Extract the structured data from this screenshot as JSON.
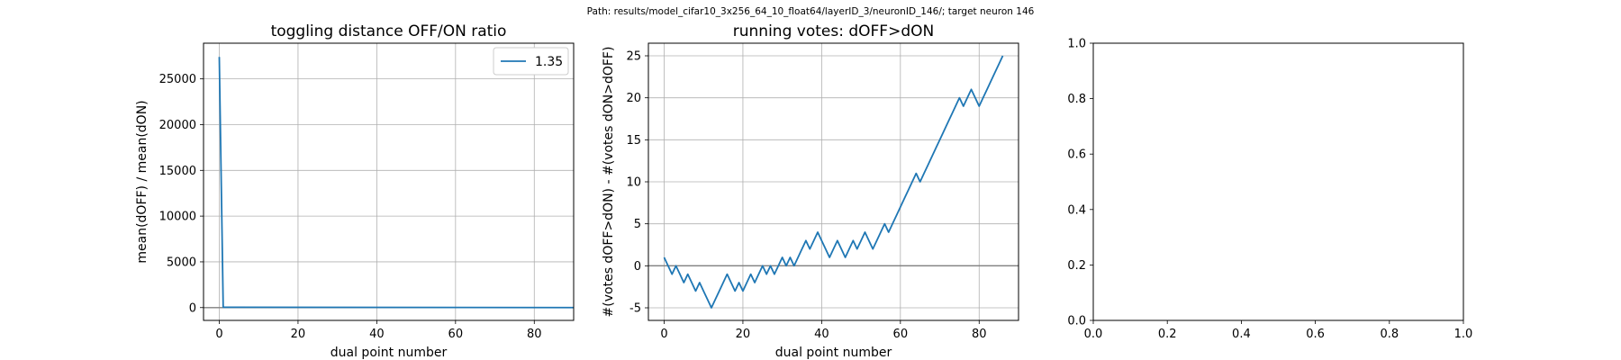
{
  "suptitle": "Path: results/model_cifar10_3x256_64_10_float64/layerID_3/neuronID_146/; target neuron 146",
  "chart_data": [
    {
      "type": "line",
      "title": "toggling distance OFF/ON ratio",
      "xlabel": "dual point number",
      "ylabel": "mean(dOFF) / mean(dON)",
      "xlim": [
        -4,
        90
      ],
      "ylim": [
        -1400,
        28900
      ],
      "xticks": [
        0,
        20,
        40,
        60,
        80
      ],
      "yticks": [
        0,
        5000,
        10000,
        15000,
        20000,
        25000
      ],
      "grid": true,
      "legend": {
        "position": "top-right",
        "entries": [
          "1.35"
        ]
      },
      "series": [
        {
          "name": "1.35",
          "color": "#1f77b4",
          "x": [
            0,
            1,
            90
          ],
          "y": [
            27400,
            40,
            0
          ]
        }
      ],
      "hlines": [
        {
          "y": 0,
          "color": "#808080"
        }
      ]
    },
    {
      "type": "line",
      "title": "running votes: dOFF>dON",
      "xlabel": "dual point number",
      "ylabel": "#(votes dOFF>dON) - #(votes dON>dOFF)",
      "xlim": [
        -4,
        90
      ],
      "ylim": [
        -6.5,
        26.5
      ],
      "xticks": [
        0,
        20,
        40,
        60,
        80
      ],
      "yticks": [
        -5,
        0,
        5,
        10,
        15,
        20,
        25
      ],
      "grid": true,
      "series": [
        {
          "color": "#1f77b4",
          "x": [
            0,
            2,
            3,
            4,
            5,
            6,
            7,
            8,
            9,
            10,
            11,
            12,
            13,
            14,
            15,
            16,
            17,
            18,
            19,
            20,
            21,
            22,
            23,
            24,
            25,
            26,
            27,
            28,
            29,
            30,
            31,
            32,
            33,
            34,
            35,
            36,
            37,
            38,
            39,
            40,
            41,
            42,
            43,
            44,
            45,
            46,
            47,
            48,
            49,
            50,
            51,
            52,
            53,
            54,
            55,
            56,
            57,
            58,
            59,
            60,
            61,
            62,
            63,
            64,
            65,
            66,
            67,
            68,
            69,
            70,
            71,
            72,
            73,
            74,
            75,
            76,
            77,
            78,
            79,
            80,
            81,
            82,
            83,
            84,
            85,
            86
          ],
          "y": [
            1,
            -1,
            0,
            -1,
            -2,
            -1,
            -2,
            -3,
            -2,
            -3,
            -4,
            -5,
            -4,
            -3,
            -2,
            -1,
            -2,
            -3,
            -2,
            -3,
            -2,
            -1,
            -2,
            -1,
            0,
            -1,
            0,
            -1,
            0,
            1,
            0,
            1,
            0,
            1,
            2,
            3,
            2,
            3,
            4,
            3,
            2,
            1,
            2,
            3,
            2,
            1,
            2,
            3,
            2,
            3,
            4,
            3,
            2,
            3,
            4,
            5,
            4,
            5,
            6,
            7,
            8,
            9,
            10,
            11,
            10,
            11,
            12,
            13,
            14,
            15,
            16,
            17,
            18,
            19,
            20,
            19,
            20,
            21,
            20,
            19,
            20,
            21,
            22,
            23,
            24,
            25
          ]
        }
      ],
      "hlines": [
        {
          "y": 0,
          "color": "#808080"
        }
      ]
    },
    {
      "type": "line",
      "title": "",
      "xlim": [
        0,
        1
      ],
      "ylim": [
        0,
        1
      ],
      "xticks": [
        0.0,
        0.2,
        0.4,
        0.6,
        0.8,
        1.0
      ],
      "yticks": [
        0.0,
        0.2,
        0.4,
        0.6,
        0.8,
        1.0
      ],
      "grid": false,
      "series": []
    }
  ]
}
